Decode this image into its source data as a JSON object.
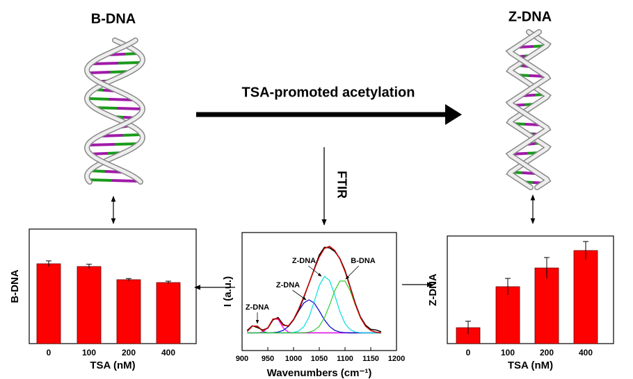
{
  "labels": {
    "left_title": "B-DNA",
    "right_title": "Z-DNA",
    "process": "TSA-promoted acetylation",
    "method": "FTIR"
  },
  "chart_data": [
    {
      "type": "bar",
      "xlabel": "TSA (nM)",
      "ylabel": "B-DNA",
      "categories": [
        "0",
        "100",
        "200",
        "400"
      ],
      "values": [
        6.97,
        6.73,
        5.58,
        5.33
      ],
      "errors": [
        0.25,
        0.2,
        0.1,
        0.12
      ],
      "color": "#ff0000",
      "ylim": [
        0,
        10
      ]
    },
    {
      "type": "line",
      "xlabel": "Wavenumbers (cm⁻¹)",
      "ylabel": "I (a.u.)",
      "x": [
        910,
        920,
        930,
        940,
        950,
        960,
        970,
        980,
        990,
        1000,
        1010,
        1020,
        1030,
        1040,
        1050,
        1060,
        1070,
        1080,
        1090,
        1100,
        1110,
        1120,
        1130,
        1140,
        1150,
        1160,
        1170
      ],
      "series": [
        {
          "color": "#8000ff",
          "values": [
            1.5,
            1.5,
            1.5,
            1.5,
            1.5,
            1.5,
            1.5,
            1.5,
            1.5,
            1.5,
            1.5,
            1.5,
            1.5,
            1.5,
            1.5,
            1.5,
            1.5,
            1.5,
            1.5,
            1.5,
            1.5,
            1.5,
            1.5,
            1.5,
            1.5,
            1.5,
            1.5
          ]
        },
        {
          "color": "#008000",
          "values": [
            1.62,
            2.07,
            2.07,
            1.62,
            1.51,
            1.5,
            1.5,
            1.5,
            1.5,
            1.5,
            1.5,
            1.5,
            1.5,
            1.5,
            1.5,
            1.5,
            1.5,
            1.5,
            1.5,
            1.5,
            1.5,
            1.5,
            1.5,
            1.5,
            1.5,
            1.5,
            1.5
          ]
        },
        {
          "color": "#ff00ff",
          "values": [
            1.5,
            1.5,
            1.5,
            1.56,
            1.92,
            2.65,
            2.65,
            1.92,
            1.56,
            1.5,
            1.5,
            1.5,
            1.5,
            1.5,
            1.5,
            1.5,
            1.5,
            1.5,
            1.5,
            1.5,
            1.5,
            1.5,
            1.5,
            1.5,
            1.5,
            1.5,
            1.5
          ]
        },
        {
          "color": "#0000cc",
          "values": [
            1.5,
            1.5,
            1.5,
            1.5,
            1.5,
            1.52,
            1.57,
            1.71,
            2.04,
            2.6,
            3.36,
            4.03,
            4.3,
            4.03,
            3.36,
            2.6,
            2.04,
            1.71,
            1.57,
            1.52,
            1.5,
            1.5,
            1.5,
            1.5,
            1.5,
            1.5,
            1.5
          ]
        },
        {
          "color": "#00e0e0",
          "values": [
            1.5,
            1.5,
            1.5,
            1.5,
            1.5,
            1.5,
            1.5,
            1.5,
            1.5,
            1.54,
            1.66,
            2.03,
            2.83,
            4.12,
            5.51,
            6.28,
            5.93,
            4.7,
            3.3,
            2.29,
            1.77,
            1.57,
            1.51,
            1.5,
            1.5,
            1.5,
            1.5
          ]
        },
        {
          "color": "#33cc33",
          "values": [
            1.5,
            1.5,
            1.5,
            1.5,
            1.5,
            1.5,
            1.5,
            1.5,
            1.5,
            1.5,
            1.5,
            1.51,
            1.56,
            1.7,
            2.06,
            2.77,
            3.86,
            5.07,
            5.89,
            5.89,
            5.07,
            3.86,
            2.77,
            2.06,
            1.7,
            1.56,
            1.51
          ]
        },
        {
          "color": "#000000",
          "values": [
            1.7,
            2.1,
            1.95,
            1.75,
            1.9,
            2.6,
            2.8,
            2.2,
            2.05,
            2.6,
            3.4,
            4.5,
            5.7,
            6.9,
            8.1,
            8.75,
            8.7,
            8.4,
            7.8,
            6.8,
            5.4,
            4.0,
            2.85,
            2.15,
            1.8,
            1.75,
            1.6
          ]
        },
        {
          "color": "#cc0000",
          "values": [
            1.62,
            2.07,
            2.07,
            1.68,
            1.93,
            2.67,
            2.72,
            2.13,
            2.1,
            2.64,
            3.52,
            4.57,
            5.69,
            6.85,
            7.93,
            8.65,
            8.83,
            8.48,
            7.76,
            6.7,
            5.34,
            3.93,
            2.78,
            2.06,
            1.7,
            1.56,
            1.51
          ]
        }
      ],
      "xlim": [
        900,
        1200
      ],
      "xticks": [
        900,
        950,
        1000,
        1050,
        1100,
        1150,
        1200
      ],
      "ylim": [
        0,
        10
      ],
      "annotations": [
        "Z-DNA",
        "Z-DNA",
        "Z-DNA",
        "B-DNA"
      ]
    },
    {
      "type": "bar",
      "xlabel": "TSA (nM)",
      "ylabel": "Z-DNA",
      "categories": [
        "0",
        "100",
        "200",
        "400"
      ],
      "values": [
        1.48,
        5.29,
        7.03,
        8.65
      ],
      "errors": [
        0.6,
        0.77,
        0.97,
        0.84
      ],
      "color": "#ff0000",
      "ylim": [
        0,
        10
      ]
    }
  ]
}
